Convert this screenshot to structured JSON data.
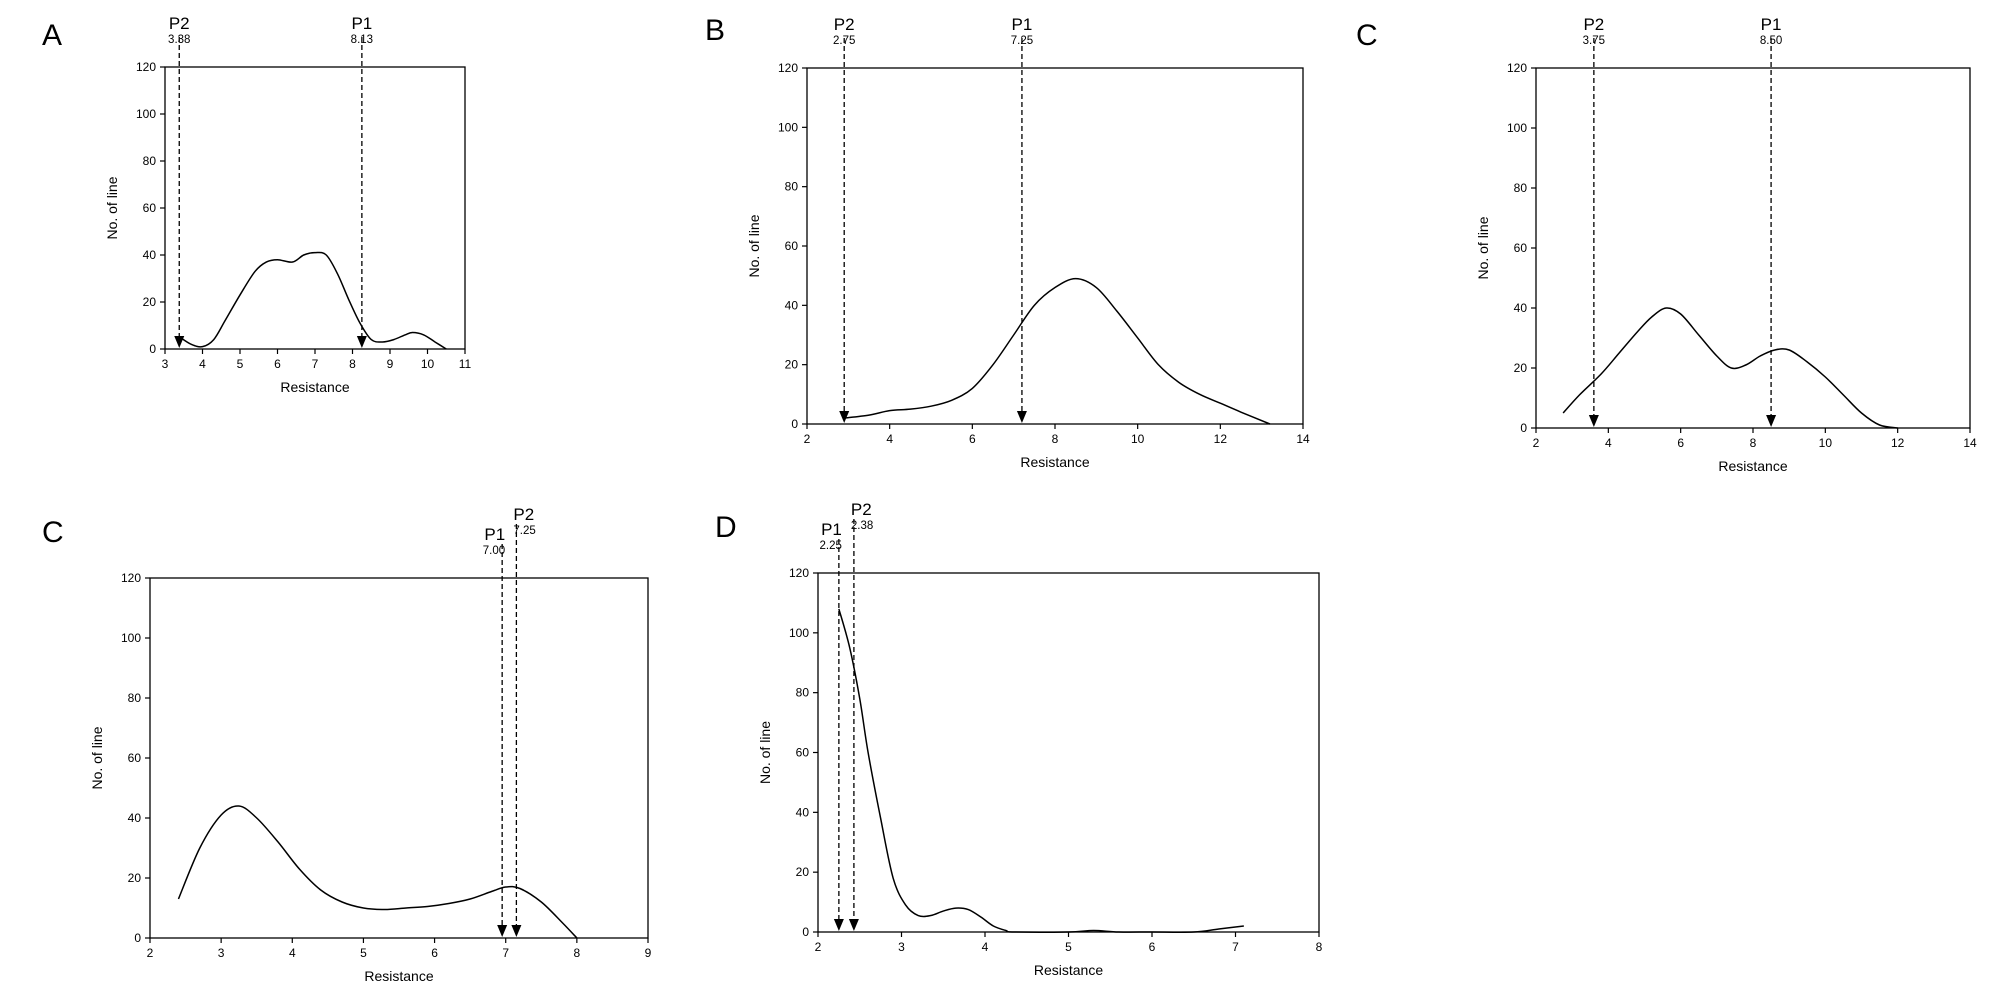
{
  "figure": {
    "panels": [
      "A",
      "B",
      "C",
      "C",
      "D"
    ]
  },
  "chart_data": [
    {
      "type": "line",
      "panel_label": "A",
      "xlabel": "Resistance",
      "ylabel": "No. of line",
      "xlim": [
        3,
        11
      ],
      "ylim": [
        0,
        120
      ],
      "xticks": [
        3,
        4,
        5,
        6,
        7,
        8,
        9,
        10,
        11
      ],
      "yticks": [
        0,
        20,
        40,
        60,
        80,
        100,
        120
      ],
      "series": [
        {
          "x": [
            3.4,
            3.7,
            4.0,
            4.3,
            4.6,
            5.0,
            5.4,
            5.7,
            6.0,
            6.4,
            6.7,
            7.0,
            7.3,
            7.6,
            7.9,
            8.2,
            8.5,
            8.8,
            9.1,
            9.4,
            9.6,
            9.9,
            10.2,
            10.5
          ],
          "y": [
            5,
            2,
            1,
            4,
            12,
            23,
            33,
            37,
            38,
            37,
            40,
            41,
            40,
            32,
            21,
            11,
            4,
            3,
            4,
            6,
            7,
            6,
            3,
            0
          ]
        }
      ],
      "markers": [
        {
          "name": "P2",
          "value": "3.38",
          "x": 3.38
        },
        {
          "name": "P1",
          "value": "8.13",
          "x": 8.25
        }
      ]
    },
    {
      "type": "line",
      "panel_label": "B",
      "xlabel": "Resistance",
      "ylabel": "No. of line",
      "xlim": [
        2,
        14
      ],
      "ylim": [
        0,
        120
      ],
      "xticks": [
        2,
        4,
        6,
        8,
        10,
        12,
        14
      ],
      "yticks": [
        0,
        20,
        40,
        60,
        80,
        100,
        120
      ],
      "series": [
        {
          "x": [
            2.9,
            3.5,
            4.0,
            4.5,
            5.0,
            5.5,
            6.0,
            6.5,
            7.0,
            7.5,
            8.0,
            8.5,
            9.0,
            9.5,
            10.0,
            10.5,
            11.0,
            11.5,
            12.0,
            12.5,
            13.2
          ],
          "y": [
            2,
            3,
            4.5,
            5,
            6,
            8,
            12,
            20,
            30,
            40,
            46,
            49,
            46,
            38,
            29,
            20,
            14,
            10,
            7,
            4,
            0
          ]
        }
      ],
      "markers": [
        {
          "name": "P2",
          "value": "2.75",
          "x": 2.9
        },
        {
          "name": "P1",
          "value": "7.25",
          "x": 7.2
        }
      ]
    },
    {
      "type": "line",
      "panel_label": "C",
      "xlabel": "Resistance",
      "ylabel": "No. of line",
      "xlim": [
        2,
        14
      ],
      "ylim": [
        0,
        120
      ],
      "xticks": [
        2,
        4,
        6,
        8,
        10,
        12,
        14
      ],
      "yticks": [
        0,
        20,
        40,
        60,
        80,
        100,
        120
      ],
      "series": [
        {
          "x": [
            2.75,
            3.2,
            3.8,
            4.3,
            4.8,
            5.2,
            5.6,
            6.0,
            6.5,
            7.0,
            7.4,
            7.8,
            8.2,
            8.6,
            9.0,
            9.5,
            10.0,
            10.5,
            11.0,
            11.5,
            12.0
          ],
          "y": [
            5,
            11,
            18,
            25,
            32,
            37,
            40,
            38,
            31,
            24,
            20,
            21,
            24,
            26,
            26,
            22,
            17,
            11,
            5,
            1,
            0
          ]
        }
      ],
      "markers": [
        {
          "name": "P2",
          "value": "3.75",
          "x": 3.6
        },
        {
          "name": "P1",
          "value": "8.50",
          "x": 8.5
        }
      ]
    },
    {
      "type": "line",
      "panel_label": "C",
      "xlabel": "Resistance",
      "ylabel": "No. of line",
      "xlim": [
        2,
        9
      ],
      "ylim": [
        0,
        120
      ],
      "xticks": [
        2,
        3,
        4,
        5,
        6,
        7,
        8,
        9
      ],
      "yticks": [
        0,
        20,
        40,
        60,
        80,
        100,
        120
      ],
      "series": [
        {
          "x": [
            2.4,
            2.7,
            3.0,
            3.25,
            3.5,
            3.8,
            4.1,
            4.4,
            4.7,
            5.0,
            5.3,
            5.6,
            5.9,
            6.2,
            6.5,
            6.8,
            7.0,
            7.2,
            7.5,
            7.8,
            8.0
          ],
          "y": [
            13,
            30,
            41,
            44,
            40,
            32,
            23,
            16,
            12,
            10,
            9.5,
            10,
            10.5,
            11.5,
            13,
            15.5,
            17,
            16.5,
            12,
            5,
            0
          ]
        }
      ],
      "markers": [
        {
          "name": "P1",
          "value": "7.00",
          "x": 6.95
        },
        {
          "name": "P2",
          "value": "7.25",
          "x": 7.15
        }
      ]
    },
    {
      "type": "line",
      "panel_label": "D",
      "xlabel": "Resistance",
      "ylabel": "No. of line",
      "xlim": [
        2,
        8
      ],
      "ylim": [
        0,
        120
      ],
      "xticks": [
        2,
        3,
        4,
        5,
        6,
        7,
        8
      ],
      "yticks": [
        0,
        20,
        40,
        60,
        80,
        100,
        120
      ],
      "series": [
        {
          "x": [
            2.25,
            2.38,
            2.5,
            2.6,
            2.75,
            2.9,
            3.05,
            3.2,
            3.35,
            3.5,
            3.65,
            3.8,
            3.95,
            4.1,
            4.25,
            4.35,
            5.0,
            5.3,
            5.6,
            6.0,
            6.5,
            6.8,
            7.1
          ],
          "y": [
            108,
            95,
            78,
            60,
            38,
            18,
            9,
            5.5,
            5.5,
            7,
            8,
            7.5,
            5,
            2,
            0.5,
            0,
            0,
            0.5,
            0,
            0,
            0,
            1,
            2
          ]
        }
      ],
      "markers": [
        {
          "name": "P1",
          "value": "2.25",
          "x": 2.25
        },
        {
          "name": "P2",
          "value": "2.38",
          "x": 2.43
        }
      ]
    }
  ]
}
